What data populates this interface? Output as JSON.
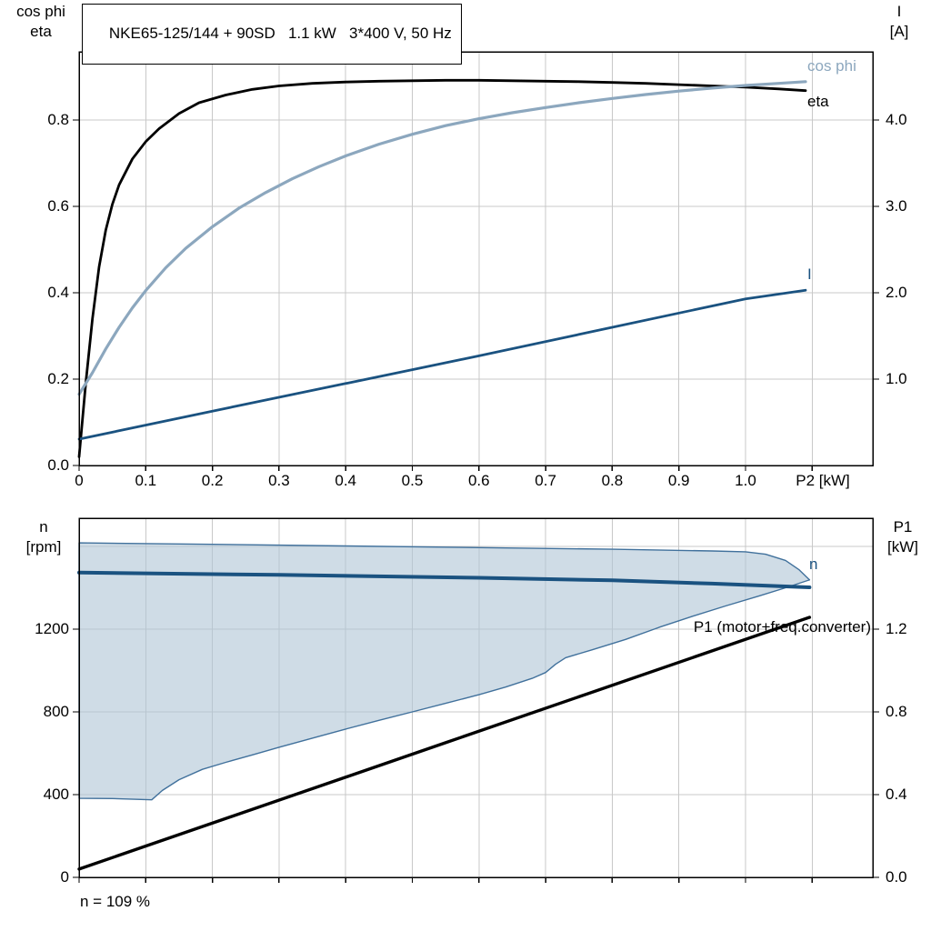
{
  "header": {
    "title": "NKE65-125/144 + 90SD   1.1 kW   3*400 V, 50 Hz"
  },
  "colors": {
    "black": "#000000",
    "light_blue": "#8CA7BE",
    "dark_blue": "#1A5280",
    "area_fill": "#AFC4D6",
    "area_stroke": "#41719C",
    "grid": "#C8C8C8",
    "frame": "#000000"
  },
  "chart_data": [
    {
      "type": "line",
      "title": "NKE65-125/144 + 90SD   1.1 kW   3*400 V, 50 Hz",
      "x_axis": {
        "label": "P2 [kW]",
        "lim": [
          0,
          1.191
        ],
        "ticks": [
          0,
          0.1,
          0.2,
          0.3,
          0.4,
          0.5,
          0.6,
          0.7,
          0.8,
          0.9,
          1.0,
          1.1
        ],
        "tick_labels": [
          "0",
          "0.1",
          "0.2",
          "0.3",
          "0.4",
          "0.5",
          "0.6",
          "0.7",
          "0.8",
          "0.9",
          "1.0"
        ],
        "grid": [
          0.1,
          0.2,
          0.3,
          0.4,
          0.5,
          0.6,
          0.7,
          0.8,
          0.9,
          1.0,
          1.1
        ]
      },
      "y_left": {
        "label_lines": [
          "cos phi",
          "eta"
        ],
        "lim": [
          0,
          0.958
        ],
        "ticks": [
          0,
          0.2,
          0.4,
          0.6,
          0.8
        ],
        "tick_labels": [
          "0.0",
          "0.2",
          "0.4",
          "0.6",
          "0.8"
        ],
        "grid": [
          0.2,
          0.4,
          0.6,
          0.8
        ]
      },
      "y_right": {
        "label_lines": [
          "I",
          "[A]"
        ],
        "lim": [
          0,
          4.79
        ],
        "ticks": [
          1,
          2,
          3,
          4
        ],
        "tick_labels": [
          "1.0",
          "2.0",
          "3.0",
          "4.0"
        ]
      },
      "series": [
        {
          "id": "eta",
          "label_text": "eta",
          "axis": "left",
          "color_key": "black",
          "width": 2.8,
          "points": [
            [
              0,
              0.02
            ],
            [
              0.01,
              0.19
            ],
            [
              0.02,
              0.34
            ],
            [
              0.03,
              0.46
            ],
            [
              0.04,
              0.545
            ],
            [
              0.05,
              0.605
            ],
            [
              0.06,
              0.65
            ],
            [
              0.08,
              0.71
            ],
            [
              0.1,
              0.75
            ],
            [
              0.12,
              0.78
            ],
            [
              0.15,
              0.815
            ],
            [
              0.18,
              0.84
            ],
            [
              0.22,
              0.858
            ],
            [
              0.26,
              0.871
            ],
            [
              0.3,
              0.879
            ],
            [
              0.35,
              0.885
            ],
            [
              0.4,
              0.888
            ],
            [
              0.45,
              0.89
            ],
            [
              0.5,
              0.891
            ],
            [
              0.55,
              0.892
            ],
            [
              0.6,
              0.892
            ],
            [
              0.65,
              0.891
            ],
            [
              0.7,
              0.89
            ],
            [
              0.75,
              0.889
            ],
            [
              0.8,
              0.887
            ],
            [
              0.85,
              0.885
            ],
            [
              0.9,
              0.882
            ],
            [
              0.95,
              0.879
            ],
            [
              1.0,
              0.876
            ],
            [
              1.05,
              0.872
            ],
            [
              1.09,
              0.868
            ]
          ]
        },
        {
          "id": "cos-phi",
          "label_text": "cos phi",
          "axis": "left",
          "color_key": "light_blue",
          "width": 3.2,
          "points": [
            [
              0,
              0.165
            ],
            [
              0.02,
              0.215
            ],
            [
              0.04,
              0.27
            ],
            [
              0.06,
              0.32
            ],
            [
              0.08,
              0.365
            ],
            [
              0.1,
              0.405
            ],
            [
              0.13,
              0.458
            ],
            [
              0.16,
              0.503
            ],
            [
              0.2,
              0.553
            ],
            [
              0.24,
              0.596
            ],
            [
              0.28,
              0.632
            ],
            [
              0.32,
              0.664
            ],
            [
              0.36,
              0.692
            ],
            [
              0.4,
              0.717
            ],
            [
              0.45,
              0.744
            ],
            [
              0.5,
              0.767
            ],
            [
              0.55,
              0.787
            ],
            [
              0.6,
              0.803
            ],
            [
              0.65,
              0.817
            ],
            [
              0.7,
              0.829
            ],
            [
              0.75,
              0.84
            ],
            [
              0.8,
              0.85
            ],
            [
              0.85,
              0.859
            ],
            [
              0.9,
              0.867
            ],
            [
              0.95,
              0.874
            ],
            [
              1.0,
              0.88
            ],
            [
              1.05,
              0.885
            ],
            [
              1.09,
              0.889
            ]
          ]
        },
        {
          "id": "current",
          "label_text": "I",
          "axis": "right",
          "color_key": "dark_blue",
          "width": 2.8,
          "points": [
            [
              0,
              0.305
            ],
            [
              0.2,
              0.63
            ],
            [
              0.4,
              0.95
            ],
            [
              0.5,
              1.11
            ],
            [
              0.6,
              1.27
            ],
            [
              0.8,
              1.6
            ],
            [
              1.0,
              1.93
            ],
            [
              1.09,
              2.03
            ]
          ]
        }
      ]
    },
    {
      "type": "line",
      "x_axis": {
        "label": "",
        "lim": [
          0,
          1.191
        ],
        "ticks": [
          0,
          0.1,
          0.2,
          0.3,
          0.4,
          0.5,
          0.6,
          0.7,
          0.8,
          0.9,
          1.0,
          1.1
        ],
        "tick_labels": [],
        "grid": [
          0.1,
          0.2,
          0.3,
          0.4,
          0.5,
          0.6,
          0.7,
          0.8,
          0.9,
          1.0,
          1.1
        ]
      },
      "y_left": {
        "label_lines": [
          "n",
          "[rpm]"
        ],
        "lim": [
          0,
          1736
        ],
        "ticks": [
          0,
          400,
          800,
          1200
        ],
        "tick_labels": [
          "0",
          "400",
          "800",
          "1200"
        ],
        "grid": [
          400,
          800,
          1200,
          1600
        ]
      },
      "y_right": {
        "label_lines": [
          "P1",
          "[kW]"
        ],
        "lim": [
          0,
          1.736
        ],
        "ticks": [
          0,
          0.4,
          0.8,
          1.2
        ],
        "tick_labels": [
          "0.0",
          "0.4",
          "0.8",
          "1.2"
        ]
      },
      "area": {
        "name": "speed-range",
        "upper": [
          [
            0,
            1617
          ],
          [
            0.2,
            1610
          ],
          [
            0.4,
            1602
          ],
          [
            0.6,
            1594
          ],
          [
            0.8,
            1586
          ],
          [
            0.95,
            1578
          ],
          [
            1.0,
            1574
          ],
          [
            1.03,
            1562
          ],
          [
            1.06,
            1532
          ],
          [
            1.08,
            1488
          ],
          [
            1.096,
            1438
          ]
        ],
        "lower": [
          [
            0,
            382
          ],
          [
            0.05,
            381
          ],
          [
            0.109,
            375
          ],
          [
            0.125,
            420
          ],
          [
            0.15,
            472
          ],
          [
            0.185,
            522
          ],
          [
            0.22,
            556
          ],
          [
            0.26,
            592
          ],
          [
            0.3,
            629
          ],
          [
            0.35,
            673
          ],
          [
            0.4,
            717
          ],
          [
            0.45,
            759
          ],
          [
            0.5,
            800
          ],
          [
            0.55,
            841
          ],
          [
            0.6,
            883
          ],
          [
            0.64,
            920
          ],
          [
            0.68,
            962
          ],
          [
            0.7,
            990
          ],
          [
            0.715,
            1030
          ],
          [
            0.73,
            1062
          ],
          [
            0.77,
            1100
          ],
          [
            0.82,
            1150
          ],
          [
            0.87,
            1208
          ],
          [
            0.92,
            1262
          ],
          [
            0.97,
            1312
          ],
          [
            1.02,
            1360
          ],
          [
            1.06,
            1400
          ],
          [
            1.096,
            1438
          ]
        ]
      },
      "series": [
        {
          "id": "speed",
          "label_text": "n",
          "axis": "left",
          "color_key": "dark_blue",
          "width": 4,
          "points": [
            [
              0,
              1473
            ],
            [
              0.3,
              1462
            ],
            [
              0.6,
              1448
            ],
            [
              0.8,
              1436
            ],
            [
              0.95,
              1420
            ],
            [
              1.096,
              1402
            ]
          ]
        },
        {
          "id": "p1",
          "label_text": "P1 (motor+freq.converter)",
          "axis": "right",
          "color_key": "black",
          "width": 3.4,
          "points": [
            [
              0,
              0.04
            ],
            [
              0.55,
              0.651
            ],
            [
              1.096,
              1.257
            ]
          ]
        }
      ],
      "annotation": "n = 109 %"
    }
  ]
}
